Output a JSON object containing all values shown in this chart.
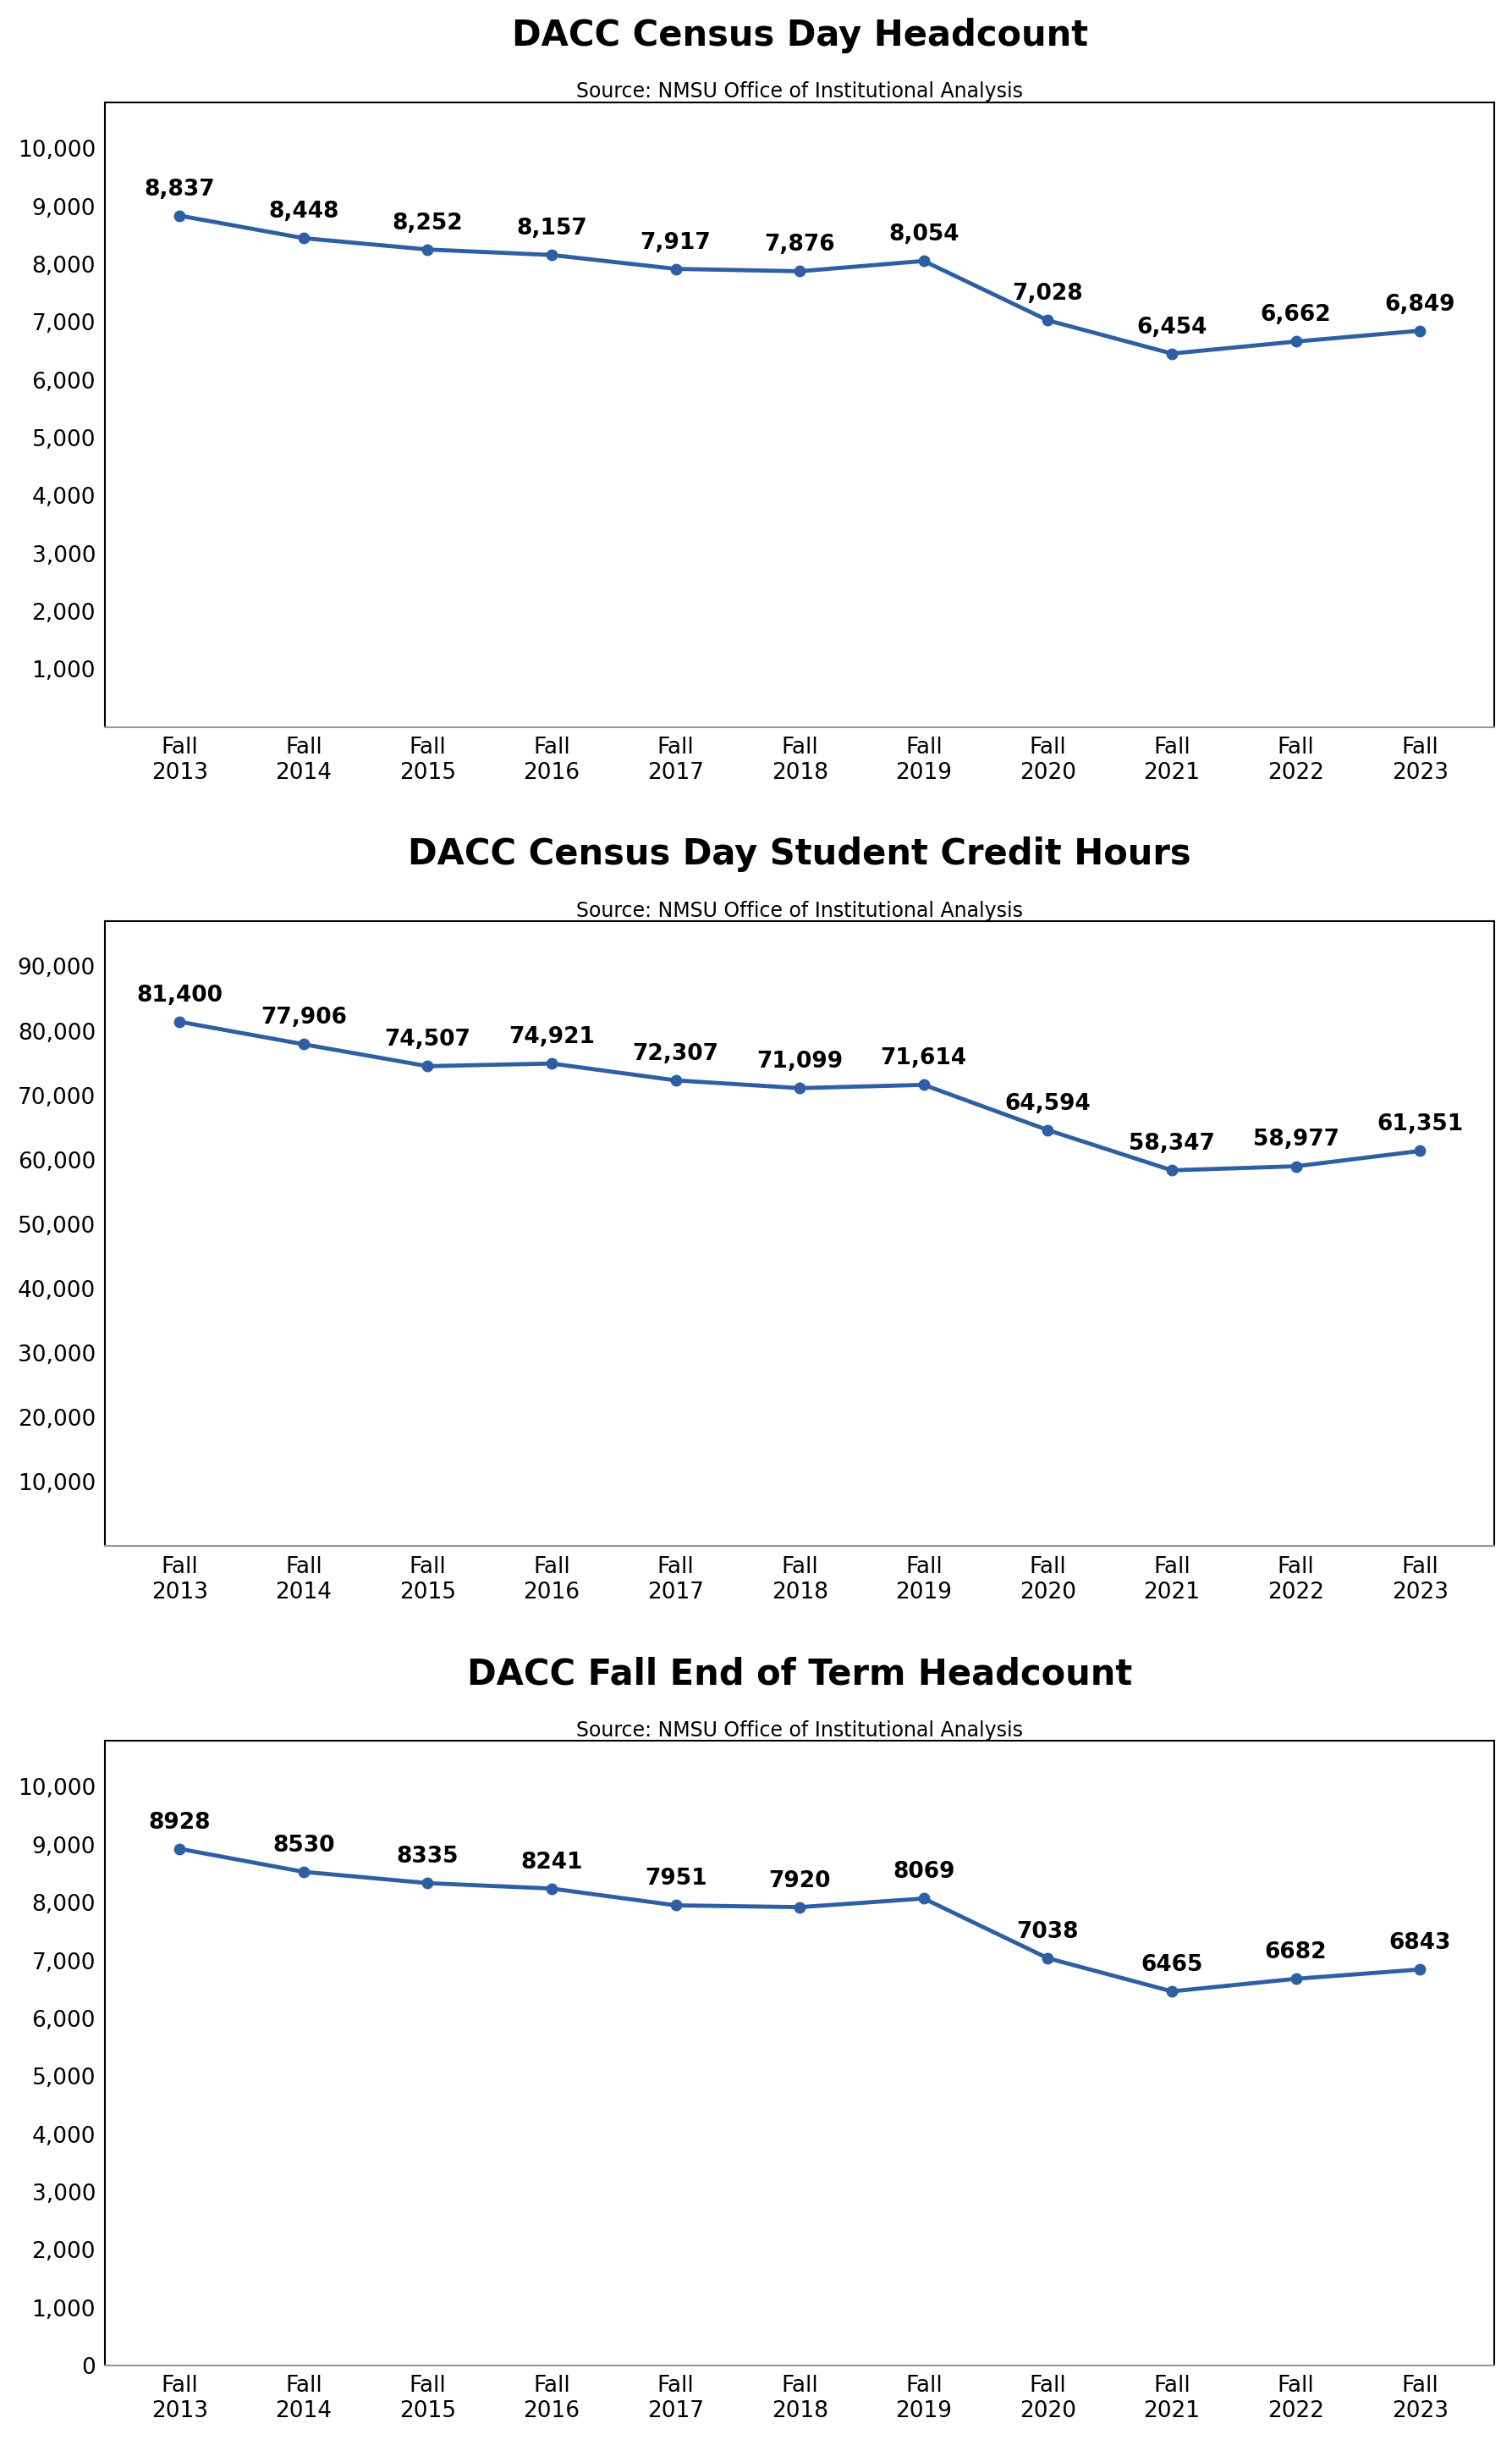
{
  "charts": [
    {
      "title": "DACC Census Day Headcount",
      "subtitle": "Source: NMSU Office of Institutional Analysis",
      "years": [
        "Fall\n2013",
        "Fall\n2014",
        "Fall\n2015",
        "Fall\n2016",
        "Fall\n2017",
        "Fall\n2018",
        "Fall\n2019",
        "Fall\n2020",
        "Fall\n2021",
        "Fall\n2022",
        "Fall\n2023"
      ],
      "values": [
        8837,
        8448,
        8252,
        8157,
        7917,
        7876,
        8054,
        7028,
        6454,
        6662,
        6849
      ],
      "labels": [
        "8,837",
        "8,448",
        "8,252",
        "8,157",
        "7,917",
        "7,876",
        "8,054",
        "7,028",
        "6,454",
        "6,662",
        "6,849"
      ],
      "yticks": [
        1000,
        2000,
        3000,
        4000,
        5000,
        6000,
        7000,
        8000,
        9000,
        10000
      ],
      "ytick_labels": [
        "1,000",
        "2,000",
        "3,000",
        "4,000",
        "5,000",
        "6,000",
        "7,000",
        "8,000",
        "9,000",
        "10,000"
      ],
      "ylim": [
        0,
        10800
      ]
    },
    {
      "title": "DACC Census Day Student Credit Hours",
      "subtitle": "Source: NMSU Office of Institutional Analysis",
      "years": [
        "Fall\n2013",
        "Fall\n2014",
        "Fall\n2015",
        "Fall\n2016",
        "Fall\n2017",
        "Fall\n2018",
        "Fall\n2019",
        "Fall\n2020",
        "Fall\n2021",
        "Fall\n2022",
        "Fall\n2023"
      ],
      "values": [
        81400,
        77906,
        74507,
        74921,
        72307,
        71099,
        71614,
        64594,
        58347,
        58977,
        61351
      ],
      "labels": [
        "81,400",
        "77,906",
        "74,507",
        "74,921",
        "72,307",
        "71,099",
        "71,614",
        "64,594",
        "58,347",
        "58,977",
        "61,351"
      ],
      "yticks": [
        10000,
        20000,
        30000,
        40000,
        50000,
        60000,
        70000,
        80000,
        90000
      ],
      "ytick_labels": [
        "10,000",
        "20,000",
        "30,000",
        "40,000",
        "50,000",
        "60,000",
        "70,000",
        "80,000",
        "90,000"
      ],
      "ylim": [
        0,
        97000
      ]
    },
    {
      "title": "DACC Fall End of Term Headcount",
      "subtitle": "Source: NMSU Office of Institutional Analysis",
      "years": [
        "Fall\n2013",
        "Fall\n2014",
        "Fall\n2015",
        "Fall\n2016",
        "Fall\n2017",
        "Fall\n2018",
        "Fall\n2019",
        "Fall\n2020",
        "Fall\n2021",
        "Fall\n2022",
        "Fall\n2023"
      ],
      "values": [
        8928,
        8530,
        8335,
        8241,
        7951,
        7920,
        8069,
        7038,
        6465,
        6682,
        6843
      ],
      "labels": [
        "8928",
        "8530",
        "8335",
        "8241",
        "7951",
        "7920",
        "8069",
        "7038",
        "6465",
        "6682",
        "6843"
      ],
      "yticks": [
        0,
        1000,
        2000,
        3000,
        4000,
        5000,
        6000,
        7000,
        8000,
        9000,
        10000
      ],
      "ytick_labels": [
        "0",
        "1,000",
        "2,000",
        "3,000",
        "4,000",
        "5,000",
        "6,000",
        "7,000",
        "8,000",
        "9,000",
        "10,000"
      ],
      "ylim": [
        0,
        10800
      ]
    }
  ],
  "line_color": "#2E5FA3",
  "line_width": 3.5,
  "marker_size": 9,
  "title_fontsize": 30,
  "subtitle_fontsize": 17,
  "tick_fontsize": 19,
  "label_fontsize": 19,
  "background_color": "#ffffff",
  "border_color": "#000000",
  "bottom_spine_color": "#999999"
}
